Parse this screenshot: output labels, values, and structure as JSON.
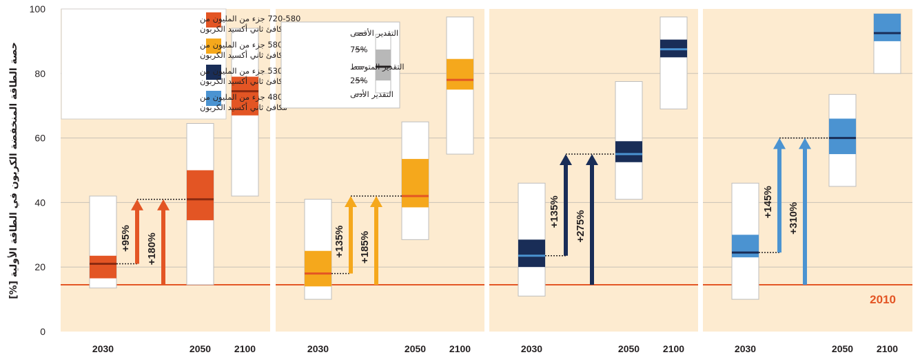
{
  "chart_data": {
    "type": "box",
    "ylabel": "حصة الطاقة المنخفضة الكربون في الطاقة الأولية [%]",
    "ylim": [
      0,
      100
    ],
    "yticks": [
      0,
      20,
      40,
      60,
      80,
      100
    ],
    "baseline": {
      "label": "2010",
      "value": 14.5,
      "color": "#e35524"
    },
    "legend_series": [
      {
        "range": "720-580",
        "text1": "جزء من المليون من",
        "text2": "مكافئ ثاني أكسيد الكربون",
        "color": "#e35524"
      },
      {
        "range": "580-530",
        "text1": "جزء من المليون من",
        "text2": "مكافئ ثاني أكسيد الكربون",
        "color": "#f5a81c"
      },
      {
        "range": "530-480",
        "text1": "جزء من المليون من",
        "text2": "مكافئ ثاني أكسيد الكربون",
        "color": "#192d57"
      },
      {
        "range": "480-430",
        "text1": "جزء من المليون من",
        "text2": "مكافئ ثاني أكسيد الكربون",
        "color": "#4b93d1"
      }
    ],
    "legend_stats": [
      "التقدير الأقصى",
      "75%",
      "التقدير المتوسط",
      "25%",
      "التقدير الأدنى"
    ],
    "panels": [
      {
        "color": "#e35524",
        "median_color": "#8b2a10",
        "boxes": [
          {
            "year": "2030",
            "min": 13.5,
            "q1": 16.5,
            "median": 21,
            "q3": 23.5,
            "max": 42
          },
          {
            "year": "2050",
            "min": 14.5,
            "q1": 34.5,
            "median": 41,
            "q3": 50,
            "max": 64.5
          },
          {
            "year": "2100",
            "min": 42,
            "q1": 67,
            "median": 74.5,
            "q3": 79,
            "max": 94
          }
        ],
        "arrows": [
          {
            "label": "+95%",
            "from": 21,
            "to": 41
          },
          {
            "label": "+180%",
            "from": 14.5,
            "to": 41
          }
        ]
      },
      {
        "color": "#f5a81c",
        "median_color": "#e35524",
        "boxes": [
          {
            "year": "2030",
            "min": 10,
            "q1": 14,
            "median": 18,
            "q3": 25,
            "max": 41
          },
          {
            "year": "2050",
            "min": 28.5,
            "q1": 38.5,
            "median": 42,
            "q3": 53.5,
            "max": 65
          },
          {
            "year": "2100",
            "min": 55,
            "q1": 75,
            "median": 78,
            "q3": 84.5,
            "max": 97.5
          }
        ],
        "arrows": [
          {
            "label": "+135%",
            "from": 18,
            "to": 42
          },
          {
            "label": "+185%",
            "from": 14.5,
            "to": 42
          }
        ]
      },
      {
        "color": "#192d57",
        "median_color": "#4b93d1",
        "boxes": [
          {
            "year": "2030",
            "min": 11,
            "q1": 20,
            "median": 23.5,
            "q3": 28.5,
            "max": 46
          },
          {
            "year": "2050",
            "min": 41,
            "q1": 52.5,
            "median": 55,
            "q3": 59,
            "max": 77.5
          },
          {
            "year": "2100",
            "min": 69,
            "q1": 85,
            "median": 87.5,
            "q3": 90.5,
            "max": 97.5
          }
        ],
        "arrows": [
          {
            "label": "+135%",
            "from": 23.5,
            "to": 55
          },
          {
            "label": "+275%",
            "from": 14.5,
            "to": 55
          }
        ]
      },
      {
        "color": "#4b93d1",
        "median_color": "#192d57",
        "boxes": [
          {
            "year": "2030",
            "min": 10,
            "q1": 23,
            "median": 24.5,
            "q3": 30,
            "max": 46
          },
          {
            "year": "2050",
            "min": 45,
            "q1": 55,
            "median": 60,
            "q3": 66,
            "max": 73.5
          },
          {
            "year": "2100",
            "min": 80,
            "q1": 90,
            "median": 92.5,
            "q3": 98.5,
            "max": 98.5
          }
        ],
        "arrows": [
          {
            "label": "+145%",
            "from": 24.5,
            "to": 60
          },
          {
            "label": "+310%",
            "from": 14.5,
            "to": 60
          }
        ]
      }
    ]
  }
}
